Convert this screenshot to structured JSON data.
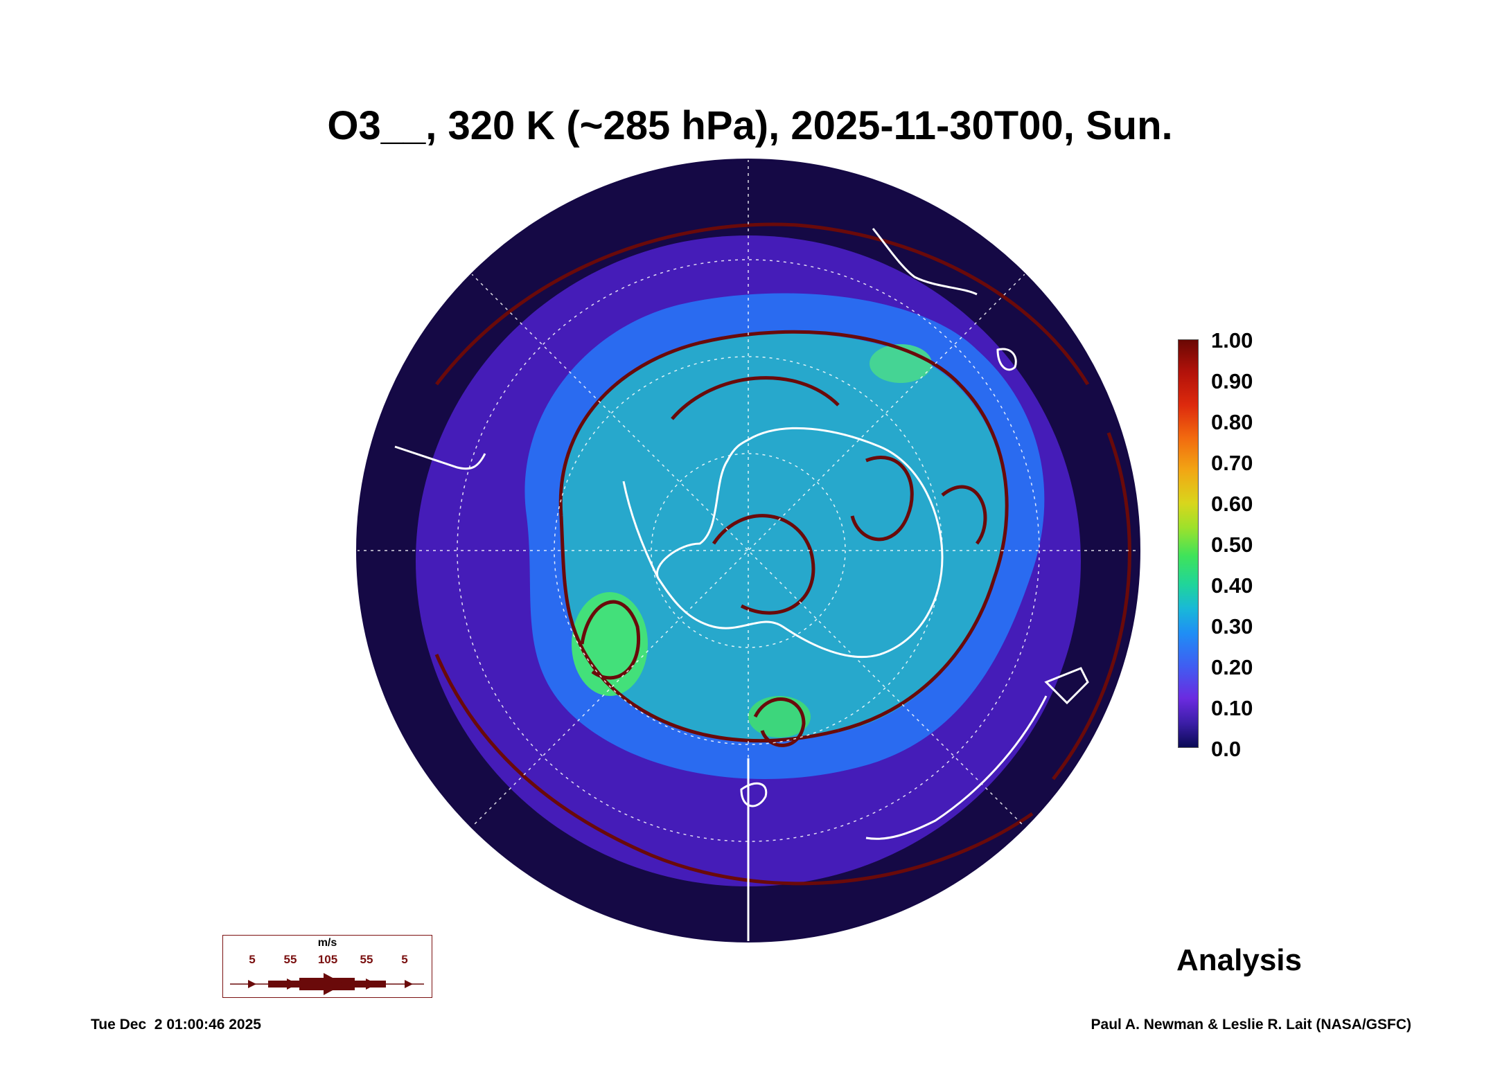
{
  "title": "O3__, 320 K (~285 hPa), 2025-11-30T00, Sun.",
  "colorbar": {
    "labels": [
      "1.00",
      "0.90",
      "0.80",
      "0.70",
      "0.60",
      "0.50",
      "0.40",
      "0.30",
      "0.20",
      "0.10",
      "0.0"
    ],
    "range": [
      0.0,
      1.0
    ]
  },
  "legend": {
    "unit": "m/s",
    "speeds": [
      "5",
      "55",
      "105",
      "55",
      "5"
    ]
  },
  "analysis_label": "Analysis",
  "timestamp": "Tue Dec  2 01:00:46 2025",
  "credit": "Paul A. Newman & Leslie R. Lait (NASA/GSFC)",
  "colors": {
    "background": "#ffffff",
    "map_ocean": "#1a0a4a",
    "streamline": "#6a0a0a",
    "coastline": "#ffffff"
  }
}
